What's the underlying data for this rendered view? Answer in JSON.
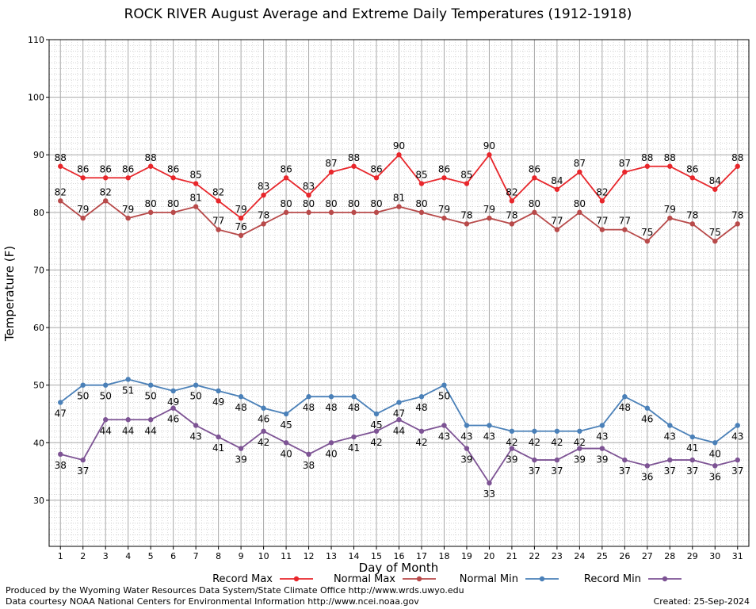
{
  "chart_data": {
    "type": "line",
    "title": "ROCK RIVER August Average and Extreme Daily Temperatures (1912-1918)",
    "xlabel": "Day of Month",
    "ylabel": "Temperature (F)",
    "ylim": [
      22,
      110
    ],
    "yticks": [
      30,
      40,
      50,
      60,
      70,
      80,
      90,
      100,
      110
    ],
    "x": [
      1,
      2,
      3,
      4,
      5,
      6,
      7,
      8,
      9,
      10,
      11,
      12,
      13,
      14,
      15,
      16,
      17,
      18,
      19,
      20,
      21,
      22,
      23,
      24,
      25,
      26,
      27,
      28,
      29,
      30,
      31
    ],
    "grid": true,
    "legend_placement": "bottom",
    "series": [
      {
        "name": "Record Max",
        "color": "#e8262b",
        "label_position": "above",
        "values": [
          88,
          86,
          86,
          86,
          88,
          86,
          85,
          82,
          79,
          83,
          86,
          83,
          87,
          88,
          86,
          90,
          85,
          86,
          85,
          90,
          82,
          86,
          84,
          87,
          82,
          87,
          88,
          88,
          86,
          84,
          88
        ]
      },
      {
        "name": "Normal Max",
        "color": "#b84a4a",
        "label_position": "above",
        "values": [
          82,
          79,
          82,
          79,
          80,
          80,
          81,
          77,
          76,
          78,
          80,
          80,
          80,
          80,
          80,
          81,
          80,
          79,
          78,
          79,
          78,
          80,
          77,
          80,
          77,
          77,
          75,
          79,
          78,
          75,
          78
        ]
      },
      {
        "name": "Normal Min",
        "color": "#4a80b8",
        "label_position": "below",
        "values": [
          47,
          50,
          50,
          51,
          50,
          49,
          50,
          49,
          48,
          46,
          45,
          48,
          48,
          48,
          45,
          47,
          48,
          50,
          43,
          43,
          42,
          42,
          42,
          42,
          43,
          48,
          46,
          43,
          41,
          40,
          43
        ]
      },
      {
        "name": "Record Min",
        "color": "#7d5394",
        "label_position": "below",
        "values": [
          38,
          37,
          44,
          44,
          44,
          46,
          43,
          41,
          39,
          42,
          40,
          38,
          40,
          41,
          42,
          44,
          42,
          43,
          39,
          33,
          39,
          37,
          37,
          39,
          39,
          37,
          36,
          37,
          37,
          36,
          37
        ]
      }
    ]
  },
  "footer": {
    "produced": "Produced by the Wyoming Water Resources Data System/State Climate Office http://www.wrds.uwyo.edu",
    "courtesy": "Data courtesy NOAA National Centers for Environmental Information http://www.ncei.noaa.gov",
    "created": "Created: 25-Sep-2024"
  }
}
